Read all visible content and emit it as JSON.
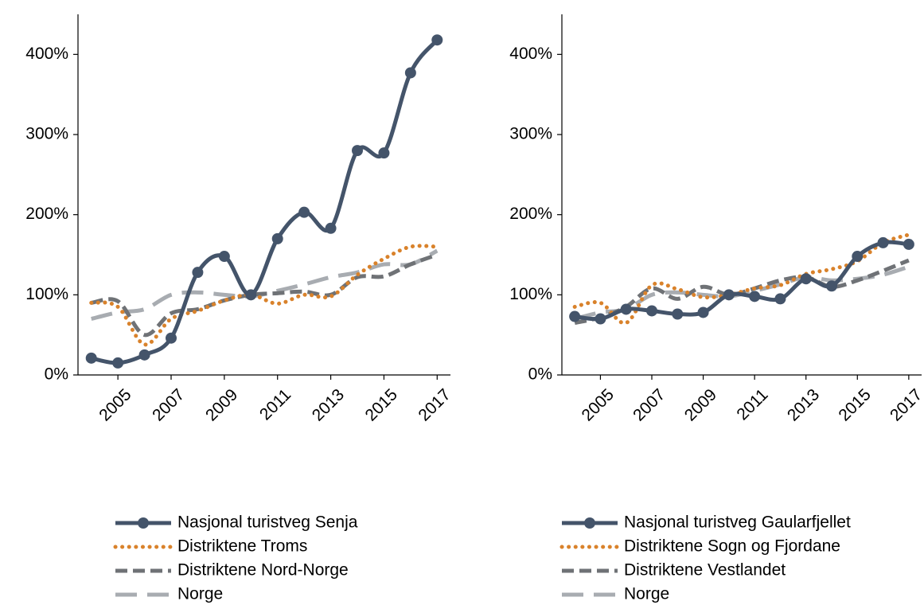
{
  "chart_data": [
    {
      "type": "line",
      "x": [
        2004,
        2005,
        2006,
        2007,
        2008,
        2009,
        2010,
        2011,
        2012,
        2013,
        2014,
        2015,
        2016,
        2017
      ],
      "xlim": [
        2003.5,
        2017.5
      ],
      "xticks": [
        2005,
        2007,
        2009,
        2011,
        2013,
        2015,
        2017
      ],
      "ylim": [
        0,
        450
      ],
      "yticks": [
        {
          "value": 0,
          "label": "0%"
        },
        {
          "value": 100,
          "label": "100%"
        },
        {
          "value": 200,
          "label": "200%"
        },
        {
          "value": 300,
          "label": "300%"
        },
        {
          "value": 400,
          "label": "400%"
        }
      ],
      "series": [
        {
          "name": "Nasjonal turistveg Senja",
          "color": "#44546a",
          "dash": "solid",
          "marker": "circle",
          "values": [
            21,
            15,
            25,
            46,
            128,
            148,
            100,
            170,
            203,
            183,
            280,
            277,
            377,
            418
          ]
        },
        {
          "name": "Distriktene Troms",
          "color": "#d9822b",
          "dash": "dotted",
          "values": [
            90,
            85,
            38,
            70,
            80,
            93,
            100,
            89,
            100,
            98,
            125,
            145,
            160,
            160
          ]
        },
        {
          "name": "Distriktene Nord-Norge",
          "color": "#6f7276",
          "dash": "dashed",
          "values": [
            90,
            92,
            50,
            77,
            82,
            93,
            100,
            102,
            104,
            100,
            122,
            123,
            138,
            150
          ]
        },
        {
          "name": "Norge",
          "color": "#a8acb1",
          "dash": "longdash",
          "values": [
            70,
            78,
            82,
            100,
            103,
            100,
            98,
            105,
            113,
            122,
            128,
            138,
            138,
            155
          ]
        }
      ]
    },
    {
      "type": "line",
      "x": [
        2004,
        2005,
        2006,
        2007,
        2008,
        2009,
        2010,
        2011,
        2012,
        2013,
        2014,
        2015,
        2016,
        2017
      ],
      "xlim": [
        2003.5,
        2017.5
      ],
      "xticks": [
        2005,
        2007,
        2009,
        2011,
        2013,
        2015,
        2017
      ],
      "ylim": [
        0,
        450
      ],
      "yticks": [
        {
          "value": 0,
          "label": "0%"
        },
        {
          "value": 100,
          "label": "100%"
        },
        {
          "value": 200,
          "label": "200%"
        },
        {
          "value": 300,
          "label": "300%"
        },
        {
          "value": 400,
          "label": "400%"
        }
      ],
      "series": [
        {
          "name": "Nasjonal turistveg Gaularfjellet",
          "color": "#44546a",
          "dash": "solid",
          "marker": "circle",
          "values": [
            73,
            70,
            82,
            80,
            76,
            78,
            100,
            98,
            95,
            120,
            111,
            148,
            165,
            163
          ]
        },
        {
          "name": "Distriktene Sogn og Fjordane",
          "color": "#d9822b",
          "dash": "dotted",
          "values": [
            85,
            90,
            65,
            112,
            107,
            97,
            100,
            108,
            112,
            126,
            132,
            142,
            165,
            175
          ]
        },
        {
          "name": "Distriktene Vestlandet",
          "color": "#6f7276",
          "dash": "dashed",
          "values": [
            65,
            72,
            85,
            108,
            95,
            110,
            100,
            108,
            118,
            122,
            110,
            118,
            130,
            143
          ]
        },
        {
          "name": "Norge",
          "color": "#a8acb1",
          "dash": "longdash",
          "values": [
            70,
            78,
            82,
            100,
            103,
            100,
            98,
            105,
            113,
            122,
            118,
            120,
            125,
            135
          ]
        }
      ]
    }
  ]
}
